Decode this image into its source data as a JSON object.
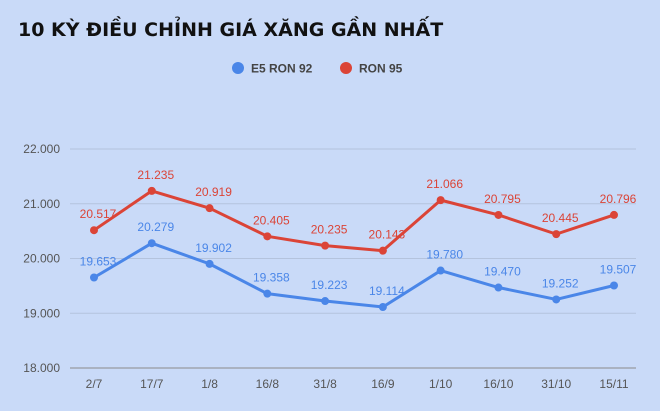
{
  "chart_data": {
    "type": "line",
    "title": "10 KỲ ĐIỀU CHỈNH GIÁ XĂNG GẦN NHẤT",
    "xlabel": "",
    "ylabel": "",
    "categories": [
      "2/7",
      "17/7",
      "1/8",
      "16/8",
      "31/8",
      "16/9",
      "1/10",
      "16/10",
      "31/10",
      "15/11"
    ],
    "y_ticks": [
      "18.000",
      "19.000",
      "20.000",
      "21.000",
      "22.000"
    ],
    "ylim": [
      18000,
      22000
    ],
    "grid": true,
    "legend_position": "top",
    "series": [
      {
        "name": "E5 RON 92",
        "color": "#4a86e8",
        "values": [
          19653,
          20279,
          19902,
          19358,
          19223,
          19114,
          19780,
          19470,
          19252,
          19507
        ],
        "labels": [
          "19.653",
          "20.279",
          "19.902",
          "19.358",
          "19.223",
          "19.114",
          "19.780",
          "19.470",
          "19.252",
          "19.507"
        ]
      },
      {
        "name": "RON 95",
        "color": "#db4437",
        "values": [
          20517,
          21235,
          20919,
          20405,
          20235,
          20143,
          21066,
          20795,
          20445,
          20796
        ],
        "labels": [
          "20.517",
          "21.235",
          "20.919",
          "20.405",
          "20.235",
          "20.143",
          "21.066",
          "20.795",
          "20.445",
          "20.796"
        ]
      }
    ]
  }
}
